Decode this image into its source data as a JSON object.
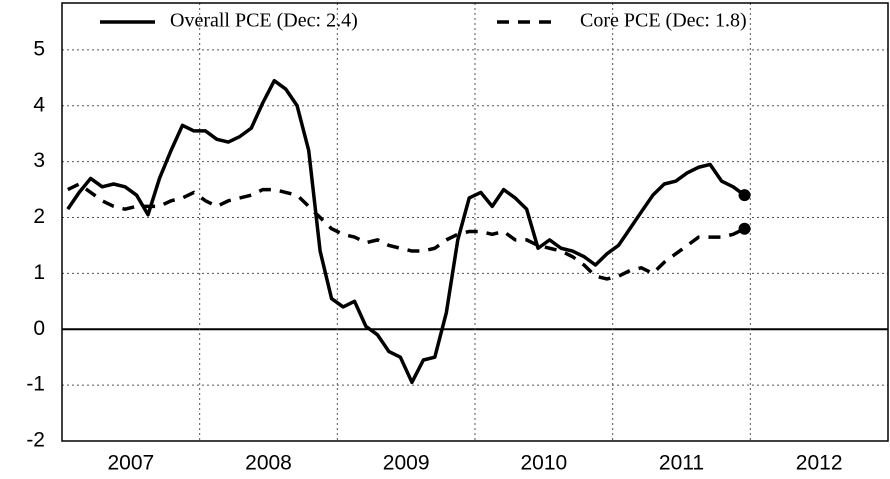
{
  "chart_data": {
    "type": "line",
    "x": [
      2007.042,
      2007.125,
      2007.208,
      2007.292,
      2007.375,
      2007.458,
      2007.542,
      2007.625,
      2007.708,
      2007.792,
      2007.875,
      2007.958,
      2008.042,
      2008.125,
      2008.208,
      2008.292,
      2008.375,
      2008.458,
      2008.542,
      2008.625,
      2008.708,
      2008.792,
      2008.875,
      2008.958,
      2009.042,
      2009.125,
      2009.208,
      2009.292,
      2009.375,
      2009.458,
      2009.542,
      2009.625,
      2009.708,
      2009.792,
      2009.875,
      2009.958,
      2010.042,
      2010.125,
      2010.208,
      2010.292,
      2010.375,
      2010.458,
      2010.542,
      2010.625,
      2010.708,
      2010.792,
      2010.875,
      2010.958,
      2011.042,
      2011.125,
      2011.208,
      2011.292,
      2011.375,
      2011.458,
      2011.542,
      2011.625,
      2011.708,
      2011.792,
      2011.875,
      2011.958
    ],
    "series": [
      {
        "name": "Overall PCE (Dec: 2.4)",
        "color": "#000000",
        "dash": false,
        "values": [
          2.15,
          2.45,
          2.7,
          2.55,
          2.6,
          2.55,
          2.4,
          2.05,
          2.7,
          3.2,
          3.65,
          3.55,
          3.55,
          3.4,
          3.35,
          3.45,
          3.6,
          4.05,
          4.45,
          4.3,
          4.0,
          3.2,
          1.4,
          0.55,
          0.4,
          0.5,
          0.05,
          -0.1,
          -0.4,
          -0.5,
          -0.95,
          -0.55,
          -0.5,
          0.3,
          1.6,
          2.35,
          2.45,
          2.2,
          2.5,
          2.35,
          2.15,
          1.45,
          1.6,
          1.45,
          1.4,
          1.3,
          1.15,
          1.35,
          1.5,
          1.8,
          2.1,
          2.4,
          2.6,
          2.65,
          2.8,
          2.9,
          2.95,
          2.65,
          2.55,
          2.4
        ]
      },
      {
        "name": "Core PCE (Dec: 1.8)",
        "color": "#000000",
        "dash": true,
        "values": [
          2.5,
          2.6,
          2.45,
          2.3,
          2.2,
          2.15,
          2.2,
          2.2,
          2.2,
          2.3,
          2.35,
          2.45,
          2.3,
          2.2,
          2.3,
          2.35,
          2.4,
          2.5,
          2.5,
          2.45,
          2.4,
          2.2,
          2.0,
          1.8,
          1.7,
          1.65,
          1.55,
          1.6,
          1.5,
          1.45,
          1.4,
          1.4,
          1.45,
          1.6,
          1.7,
          1.75,
          1.75,
          1.7,
          1.75,
          1.6,
          1.6,
          1.5,
          1.45,
          1.4,
          1.3,
          1.15,
          0.95,
          0.9,
          0.95,
          1.05,
          1.1,
          1.0,
          1.2,
          1.35,
          1.5,
          1.65,
          1.65,
          1.65,
          1.7,
          1.8
        ]
      }
    ],
    "xlim": [
      2007,
      2013
    ],
    "xticks": [
      {
        "value": 2007.5,
        "label": "2007"
      },
      {
        "value": 2008.5,
        "label": "2008"
      },
      {
        "value": 2009.5,
        "label": "2009"
      },
      {
        "value": 2010.5,
        "label": "2010"
      },
      {
        "value": 2011.5,
        "label": "2011"
      },
      {
        "value": 2012.5,
        "label": "2012"
      }
    ],
    "xgrid": [
      2008,
      2009,
      2010,
      2011,
      2012
    ],
    "ylim": [
      -2,
      5.84
    ],
    "yticks": [
      -2,
      -1,
      0,
      1,
      2,
      3,
      4,
      5
    ],
    "grid": true
  }
}
